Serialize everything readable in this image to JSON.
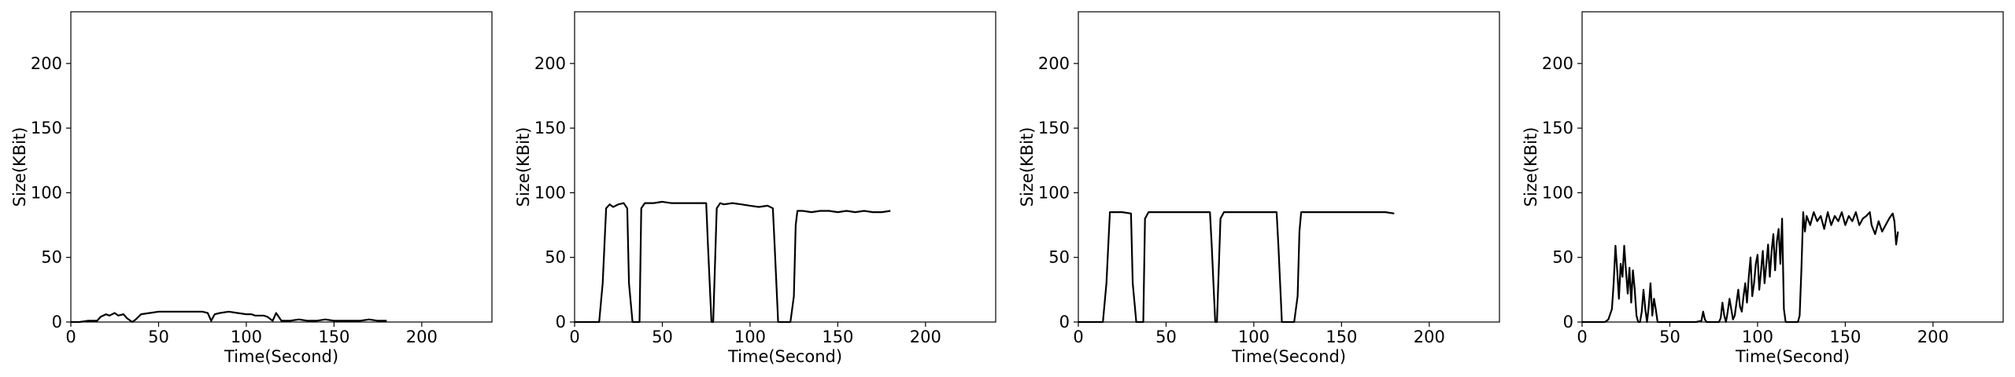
{
  "chart_data": [
    {
      "type": "line",
      "xlabel": "Time(Second)",
      "ylabel": "Size(KBit)",
      "xlim": [
        0,
        240
      ],
      "ylim": [
        0,
        240
      ],
      "xticks": [
        0,
        50,
        100,
        150,
        200
      ],
      "yticks": [
        0,
        50,
        100,
        150,
        200
      ],
      "grid": false,
      "series": [
        {
          "color": "#000000",
          "x": [
            0,
            5,
            10,
            15,
            17,
            20,
            22,
            25,
            27,
            30,
            32,
            35,
            37,
            40,
            45,
            50,
            55,
            60,
            65,
            70,
            75,
            78,
            80,
            82,
            85,
            90,
            95,
            100,
            103,
            105,
            108,
            110,
            112,
            115,
            117,
            120,
            125,
            130,
            135,
            140,
            145,
            150,
            155,
            160,
            165,
            170,
            175,
            180
          ],
          "y": [
            0,
            0,
            1,
            1,
            4,
            6,
            5,
            7,
            5,
            6,
            3,
            0,
            2,
            6,
            7,
            8,
            8,
            8,
            8,
            8,
            8,
            7,
            1,
            6,
            7,
            8,
            7,
            6,
            6,
            5,
            5,
            5,
            4,
            1,
            7,
            1,
            1,
            2,
            1,
            1,
            2,
            1,
            1,
            1,
            1,
            2,
            1,
            1
          ]
        }
      ]
    },
    {
      "type": "line",
      "xlabel": "Time(Second)",
      "ylabel": "Size(KBit)",
      "xlim": [
        0,
        240
      ],
      "ylim": [
        0,
        240
      ],
      "xticks": [
        0,
        50,
        100,
        150,
        200
      ],
      "yticks": [
        0,
        50,
        100,
        150,
        200
      ],
      "grid": false,
      "series": [
        {
          "color": "#000000",
          "x": [
            0,
            5,
            10,
            14,
            16,
            18,
            20,
            22,
            25,
            28,
            30,
            31,
            33,
            35,
            37,
            38,
            40,
            45,
            50,
            55,
            60,
            65,
            70,
            75,
            76,
            78,
            79,
            81,
            83,
            85,
            90,
            95,
            100,
            105,
            110,
            113,
            114,
            116,
            120,
            123,
            125,
            126,
            127,
            130,
            135,
            140,
            145,
            150,
            155,
            160,
            165,
            170,
            175,
            180
          ],
          "y": [
            0,
            0,
            0,
            0,
            30,
            88,
            91,
            89,
            91,
            92,
            88,
            30,
            0,
            0,
            0,
            88,
            92,
            92,
            93,
            92,
            92,
            92,
            92,
            92,
            60,
            0,
            0,
            88,
            92,
            91,
            92,
            91,
            90,
            89,
            90,
            88,
            60,
            0,
            0,
            0,
            20,
            75,
            86,
            86,
            85,
            86,
            86,
            85,
            86,
            85,
            86,
            85,
            85,
            86
          ]
        }
      ]
    },
    {
      "type": "line",
      "xlabel": "Time(Second)",
      "ylabel": "Size(KBit)",
      "xlim": [
        0,
        240
      ],
      "ylim": [
        0,
        240
      ],
      "xticks": [
        0,
        50,
        100,
        150,
        200
      ],
      "yticks": [
        0,
        50,
        100,
        150,
        200
      ],
      "grid": false,
      "series": [
        {
          "color": "#000000",
          "x": [
            0,
            5,
            10,
            14,
            16,
            18,
            20,
            25,
            30,
            31,
            33,
            35,
            37,
            38,
            40,
            45,
            50,
            55,
            60,
            65,
            70,
            75,
            76,
            78,
            79,
            81,
            83,
            85,
            90,
            95,
            100,
            105,
            110,
            113,
            114,
            116,
            120,
            123,
            125,
            126,
            127,
            130,
            135,
            140,
            145,
            150,
            155,
            160,
            165,
            170,
            175,
            180
          ],
          "y": [
            0,
            0,
            0,
            0,
            30,
            85,
            85,
            85,
            84,
            30,
            0,
            0,
            0,
            80,
            85,
            85,
            85,
            85,
            85,
            85,
            85,
            85,
            60,
            0,
            0,
            80,
            85,
            85,
            85,
            85,
            85,
            85,
            85,
            85,
            60,
            0,
            0,
            0,
            20,
            70,
            85,
            85,
            85,
            85,
            85,
            85,
            85,
            85,
            85,
            85,
            85,
            84
          ]
        }
      ]
    },
    {
      "type": "line",
      "xlabel": "Time(Second)",
      "ylabel": "Size(KBit)",
      "xlim": [
        0,
        240
      ],
      "ylim": [
        0,
        240
      ],
      "xticks": [
        0,
        50,
        100,
        150,
        200
      ],
      "yticks": [
        0,
        50,
        100,
        150,
        200
      ],
      "grid": false,
      "series": [
        {
          "color": "#000000",
          "x": [
            0,
            5,
            10,
            13,
            15,
            17,
            18,
            19,
            20,
            21,
            22,
            23,
            24,
            25,
            26,
            27,
            28,
            29,
            30,
            31,
            32,
            33,
            34,
            35,
            36,
            37,
            38,
            39,
            40,
            41,
            42,
            43,
            44,
            45,
            46,
            47,
            48,
            50,
            55,
            60,
            65,
            68,
            69,
            70,
            71,
            75,
            78,
            79,
            80,
            81,
            82,
            83,
            84,
            85,
            86,
            87,
            88,
            89,
            90,
            91,
            92,
            93,
            94,
            95,
            96,
            97,
            98,
            99,
            100,
            101,
            102,
            103,
            104,
            105,
            106,
            107,
            108,
            109,
            110,
            111,
            112,
            113,
            114,
            115,
            116,
            117,
            118,
            120,
            123,
            124,
            125,
            126,
            127,
            128,
            130,
            132,
            134,
            136,
            138,
            140,
            142,
            144,
            146,
            148,
            150,
            152,
            154,
            156,
            158,
            160,
            162,
            164,
            165,
            167,
            169,
            171,
            173,
            175,
            177,
            178,
            179,
            180
          ],
          "y": [
            0,
            0,
            0,
            0,
            2,
            10,
            30,
            59,
            40,
            18,
            45,
            35,
            59,
            40,
            22,
            42,
            15,
            40,
            25,
            5,
            0,
            0,
            8,
            25,
            10,
            0,
            12,
            30,
            5,
            18,
            10,
            0,
            0,
            0,
            0,
            0,
            0,
            0,
            0,
            0,
            0,
            1,
            8,
            2,
            0,
            0,
            0,
            3,
            15,
            5,
            0,
            8,
            18,
            10,
            2,
            5,
            15,
            25,
            12,
            8,
            20,
            30,
            15,
            35,
            50,
            20,
            30,
            45,
            52,
            25,
            40,
            55,
            30,
            45,
            60,
            35,
            55,
            68,
            40,
            62,
            72,
            45,
            80,
            10,
            0,
            0,
            0,
            0,
            0,
            5,
            40,
            85,
            70,
            82,
            75,
            85,
            78,
            82,
            72,
            85,
            75,
            82,
            78,
            85,
            75,
            82,
            78,
            85,
            75,
            80,
            82,
            85,
            75,
            68,
            78,
            70,
            75,
            80,
            84,
            78,
            60,
            70
          ]
        }
      ]
    }
  ]
}
